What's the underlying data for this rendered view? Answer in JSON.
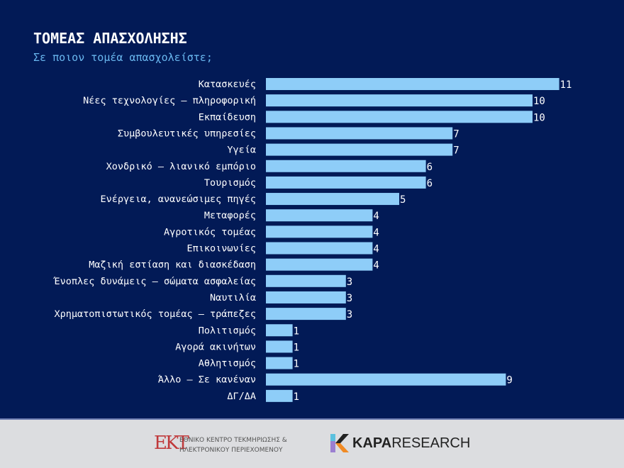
{
  "title": "ΤΟΜΕΑΣ ΑΠΑΣΧΟΛΗΣΗΣ",
  "subtitle": "Σε ποιον τομέα απασχολείστε;",
  "chart_data": {
    "type": "bar",
    "orientation": "horizontal",
    "categories": [
      "Κατασκευές",
      "Νέες τεχνολογίες – πληροφορική",
      "Εκπαίδευση",
      "Συμβουλευτικές υπηρεσίες",
      "Υγεία",
      "Χονδρικό – λιανικό εμπόριο",
      "Τουρισμός",
      "Ενέργεια, ανανεώσιμες πηγές",
      "Μεταφορές",
      "Αγροτικός τομέας",
      "Επικοινωνίες",
      "Μαζική εστίαση και διασκέδαση",
      "Ένοπλες δυνάμεις – σώματα ασφαλείας",
      "Ναυτιλία",
      "Χρηματοπιστωτικός τομέας – τράπεζες",
      "Πολιτισμός",
      "Αγορά ακινήτων",
      "Αθλητισμός",
      "Άλλο – Σε κανέναν",
      "ΔΓ/ΔΑ"
    ],
    "values": [
      11,
      10,
      10,
      7,
      7,
      6,
      6,
      5,
      4,
      4,
      4,
      4,
      3,
      3,
      3,
      1,
      1,
      1,
      9,
      1
    ],
    "bar_color": "#8ecdf8",
    "grid": false
  },
  "footer": {
    "ekt_logo": "ΕΚΤ",
    "ekt_line1": "ΕΘΝΙΚΟ ΚΕΝΤΡΟ ΤΕΚΜΗΡΙΩΣΗΣ &",
    "ekt_line2": "ΗΛΕΚΤΡΟΝΙΚΟΥ ΠΕΡΙΕΧΟΜΕΝΟΥ",
    "kapa_bold": "KAPA",
    "kapa_rest": "RESEARCH"
  }
}
